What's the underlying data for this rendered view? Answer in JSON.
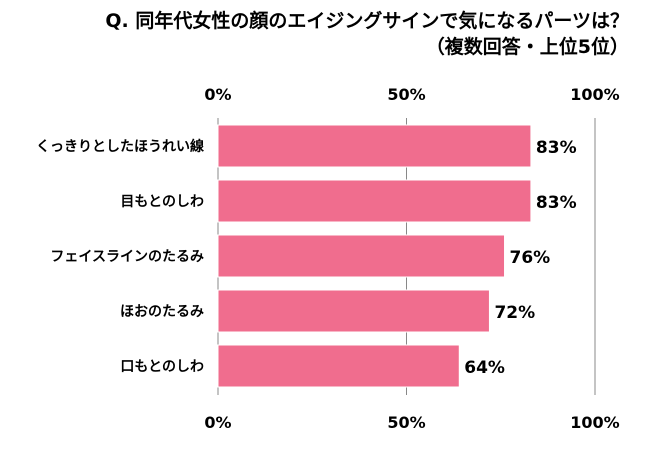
{
  "chart_data": {
    "type": "bar",
    "orientation": "horizontal",
    "title": "Q. 同年代女性の顔のエイジングサインで気になるパーツは？",
    "subtitle": "（複数回答・上位5位）",
    "categories": [
      "くっきりとしたほうれい線",
      "目もとのしわ",
      "フェイスラインのたるみ",
      "ほおのたるみ",
      "口もとのしわ"
    ],
    "values": [
      83,
      83,
      76,
      72,
      64
    ],
    "value_labels": [
      "83%",
      "83%",
      "76%",
      "72%",
      "64%"
    ],
    "xlim": [
      0,
      100
    ],
    "ticks": [
      0,
      50,
      100
    ],
    "tick_labels": [
      "0%",
      "50%",
      "100%"
    ],
    "xlabel": "",
    "ylabel": "",
    "grid": true,
    "bar_color": "#f06d8e",
    "bar_border_color": "#ffffff",
    "grid_color": "#888888"
  }
}
